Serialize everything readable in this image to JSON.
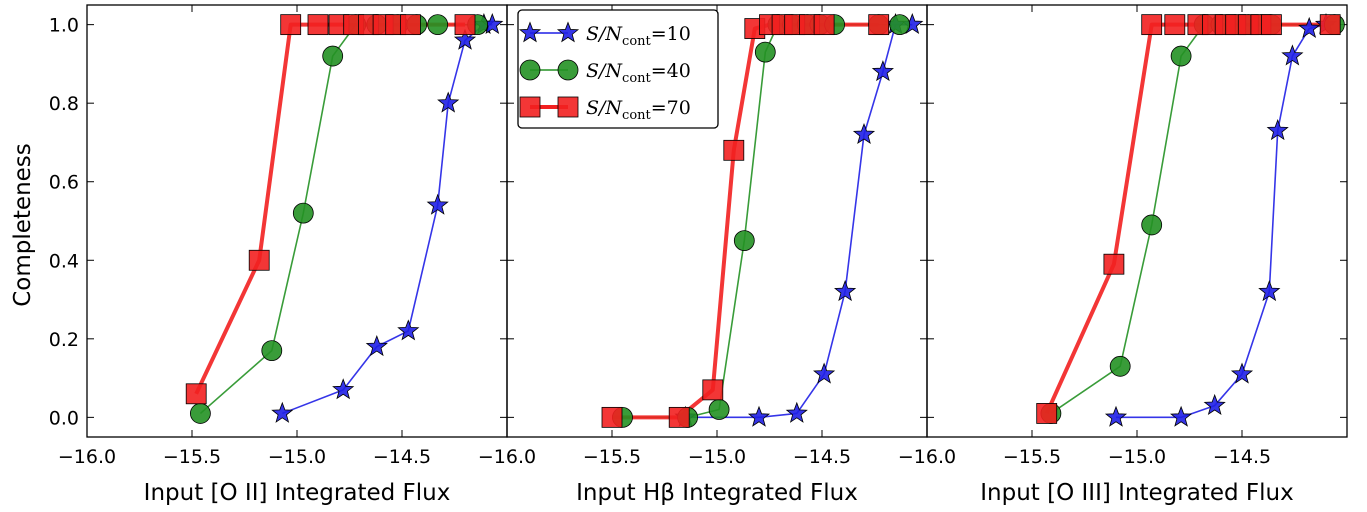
{
  "figure": {
    "ylabel": "Completeness",
    "yticks": [
      0.0,
      0.2,
      0.4,
      0.6,
      0.8,
      1.0
    ],
    "ytick_labels": [
      "0.0",
      "0.2",
      "0.4",
      "0.6",
      "0.8",
      "1.0"
    ],
    "xticks": [
      -16.0,
      -15.5,
      -15.0,
      -14.5,
      -14.0
    ],
    "xtick_labels_panel1": [
      "−16.0",
      "−15.5",
      "−15.0",
      "−14.5"
    ],
    "xtick_labels_panel2": [
      "−16.0",
      "−15.5",
      "−15.0",
      "−14.5"
    ],
    "xtick_labels_panel3": [
      "−16.0",
      "−15.5",
      "−15.0",
      "−14.5"
    ],
    "legend": {
      "placement": "upper-left of middle panel",
      "entries": [
        "S/N_cont=10",
        "S/N_cont=40",
        "S/N_cont=70"
      ]
    },
    "colors": {
      "sn10": "#1f1fe6",
      "sn40": "#249124",
      "sn70": "#f22020"
    }
  },
  "chart_data": [
    {
      "type": "line",
      "panel": 1,
      "xlabel": "Input [O II] Integrated Flux",
      "ylabel": "Completeness",
      "xlim": [
        -16.0,
        -14.0
      ],
      "ylim": [
        -0.05,
        1.05
      ],
      "series": [
        {
          "name": "S/N_cont=10",
          "marker": "star",
          "x": [
            -15.07,
            -14.78,
            -14.62,
            -14.47,
            -14.33,
            -14.28,
            -14.2,
            -14.11,
            -14.07
          ],
          "y": [
            0.01,
            0.07,
            0.18,
            0.22,
            0.54,
            0.8,
            0.96,
            1.0,
            1.0
          ]
        },
        {
          "name": "S/N_cont=40",
          "marker": "circle",
          "x": [
            -15.46,
            -15.12,
            -14.97,
            -14.83,
            -14.72,
            -14.62,
            -14.52,
            -14.43,
            -14.33,
            -14.14
          ],
          "y": [
            0.01,
            0.17,
            0.52,
            0.92,
            1.0,
            1.0,
            1.0,
            1.0,
            1.0,
            1.0
          ]
        },
        {
          "name": "S/N_cont=70",
          "marker": "square",
          "x": [
            -15.48,
            -15.18,
            -15.03,
            -14.9,
            -14.8,
            -14.73,
            -14.66,
            -14.59,
            -14.53,
            -14.46,
            -14.2
          ],
          "y": [
            0.06,
            0.4,
            1.0,
            1.0,
            1.0,
            1.0,
            1.0,
            1.0,
            1.0,
            1.0,
            1.0
          ]
        }
      ]
    },
    {
      "type": "line",
      "panel": 2,
      "xlabel": "Input Hβ Integrated Flux",
      "xlim": [
        -16.0,
        -14.0
      ],
      "ylim": [
        -0.05,
        1.05
      ],
      "series": [
        {
          "name": "S/N_cont=10",
          "marker": "star",
          "x": [
            -15.15,
            -14.8,
            -14.62,
            -14.49,
            -14.39,
            -14.3,
            -14.21,
            -14.15,
            -14.07
          ],
          "y": [
            0.0,
            0.0,
            0.01,
            0.11,
            0.32,
            0.72,
            0.88,
            1.0,
            1.0
          ]
        },
        {
          "name": "S/N_cont=40",
          "marker": "circle",
          "x": [
            -15.45,
            -15.14,
            -14.99,
            -14.87,
            -14.77,
            -14.71,
            -14.64,
            -14.57,
            -14.51,
            -14.44,
            -14.23,
            -14.13
          ],
          "y": [
            0.0,
            0.0,
            0.02,
            0.45,
            0.93,
            1.0,
            1.0,
            1.0,
            1.0,
            1.0,
            1.0,
            1.0
          ]
        },
        {
          "name": "S/N_cont=70",
          "marker": "square",
          "x": [
            -15.5,
            -15.18,
            -15.02,
            -14.92,
            -14.82,
            -14.75,
            -14.69,
            -14.63,
            -14.56,
            -14.49,
            -14.23
          ],
          "y": [
            0.0,
            0.0,
            0.07,
            0.68,
            0.99,
            1.0,
            1.0,
            1.0,
            1.0,
            1.0,
            1.0
          ]
        }
      ]
    },
    {
      "type": "line",
      "panel": 3,
      "xlabel": "Input [O III] Integrated Flux",
      "xlim": [
        -16.0,
        -14.0
      ],
      "ylim": [
        -0.05,
        1.05
      ],
      "series": [
        {
          "name": "S/N_cont=10",
          "marker": "star",
          "x": [
            -15.1,
            -14.79,
            -14.63,
            -14.5,
            -14.37,
            -14.33,
            -14.26,
            -14.18,
            -14.1
          ],
          "y": [
            0.0,
            0.0,
            0.03,
            0.11,
            0.32,
            0.73,
            0.92,
            0.99,
            1.0
          ]
        },
        {
          "name": "S/N_cont=40",
          "marker": "circle",
          "x": [
            -15.41,
            -15.08,
            -14.93,
            -14.79,
            -14.68,
            -14.6,
            -14.53,
            -14.47,
            -14.41,
            -14.36,
            -14.06
          ],
          "y": [
            0.01,
            0.13,
            0.49,
            0.92,
            1.0,
            1.0,
            1.0,
            1.0,
            1.0,
            1.0,
            1.0
          ]
        },
        {
          "name": "S/N_cont=70",
          "marker": "square",
          "x": [
            -15.43,
            -15.11,
            -14.93,
            -14.82,
            -14.71,
            -14.64,
            -14.58,
            -14.53,
            -14.47,
            -14.41,
            -14.36,
            -14.08
          ],
          "y": [
            0.01,
            0.39,
            1.0,
            1.0,
            1.0,
            1.0,
            1.0,
            1.0,
            1.0,
            1.0,
            1.0,
            1.0
          ]
        }
      ]
    }
  ]
}
